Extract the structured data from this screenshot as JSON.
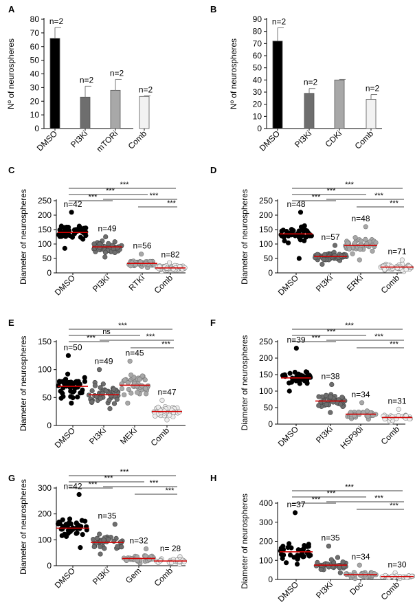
{
  "chart_data": [
    {
      "id": "A",
      "type": "bar",
      "panel_label": "A",
      "ylabel": "Nº of neurospheres",
      "ylim": [
        0,
        80
      ],
      "ytick_step": 10,
      "categories": [
        "DMSO",
        "PI3Ki",
        "mTORi",
        "Comb"
      ],
      "values": [
        66,
        23,
        28,
        23.5
      ],
      "errors": [
        8,
        8,
        8,
        0.5
      ],
      "fills": [
        "#000000",
        "#6e6e6e",
        "#a8a8a8",
        "#f2f2f2"
      ],
      "labels": [
        "n=2",
        "n=2",
        "n=2",
        "n=2"
      ]
    },
    {
      "id": "B",
      "type": "bar",
      "panel_label": "B",
      "ylabel": "Nº of neurospheres",
      "ylim": [
        0,
        90
      ],
      "ytick_step": 10,
      "categories": [
        "DMSO",
        "PI3Ki",
        "CDKi",
        "Comb"
      ],
      "values": [
        72,
        29,
        40,
        24
      ],
      "errors": [
        11,
        4,
        0.5,
        4
      ],
      "fills": [
        "#000000",
        "#6e6e6e",
        "#a8a8a8",
        "#f2f2f2"
      ],
      "labels": [
        "n=2",
        "n=2",
        "",
        "n=2"
      ]
    },
    {
      "id": "C",
      "type": "scatter",
      "panel_label": "C",
      "ylabel": "Diameter of neurospheres",
      "ylim": [
        0,
        250
      ],
      "ytick_step": 50,
      "categories": [
        "DMSO",
        "PI3Ki",
        "RTKi",
        "Comb"
      ],
      "groups": [
        {
          "n": 42,
          "label": "n=42",
          "median": 140,
          "min": 85,
          "max": 210,
          "spread": 22,
          "fill": "#000000",
          "stroke": "#000000"
        },
        {
          "n": 49,
          "label": "n=49",
          "median": 90,
          "min": 55,
          "max": 125,
          "spread": 16,
          "fill": "#6e6e6e",
          "stroke": "#444444"
        },
        {
          "n": 56,
          "label": "n=56",
          "median": 33,
          "min": 18,
          "max": 65,
          "spread": 10,
          "fill": "#a8a8a8",
          "stroke": "#777777"
        },
        {
          "n": 82,
          "label": "n=82",
          "median": 17,
          "min": 5,
          "max": 35,
          "spread": 7,
          "fill": "#eeeeee",
          "stroke": "#888888"
        }
      ],
      "comparisons": [
        [
          "DMSO",
          "Comb",
          "***"
        ],
        [
          "DMSO",
          "RTKi",
          "***"
        ],
        [
          "DMSO",
          "PI3Ki",
          "***"
        ],
        [
          "PI3Ki",
          "Comb",
          "***"
        ],
        [
          "RTKi",
          "Comb",
          "***"
        ]
      ]
    },
    {
      "id": "D",
      "type": "scatter",
      "panel_label": "D",
      "ylabel": "Diameter of neurospheres",
      "ylim": [
        0,
        250
      ],
      "ytick_step": 50,
      "categories": [
        "DMSO",
        "PI3Ki",
        "ERKi",
        "Comb"
      ],
      "groups": [
        {
          "n": 48,
          "label": "n=48",
          "median": 135,
          "min": 50,
          "max": 210,
          "spread": 25,
          "fill": "#000000",
          "stroke": "#000000"
        },
        {
          "n": 57,
          "label": "n=57",
          "median": 57,
          "min": 30,
          "max": 95,
          "spread": 12,
          "fill": "#6e6e6e",
          "stroke": "#444444"
        },
        {
          "n": 48,
          "label": "n=48",
          "median": 95,
          "min": 45,
          "max": 160,
          "spread": 22,
          "fill": "#a8a8a8",
          "stroke": "#777777"
        },
        {
          "n": 71,
          "label": "n=71",
          "median": 20,
          "min": 5,
          "max": 45,
          "spread": 8,
          "fill": "#eeeeee",
          "stroke": "#888888"
        }
      ],
      "comparisons": [
        [
          "DMSO",
          "Comb",
          "***"
        ],
        [
          "DMSO",
          "ERKi",
          "***"
        ],
        [
          "DMSO",
          "PI3Ki",
          "***"
        ],
        [
          "PI3Ki",
          "Comb",
          "***"
        ],
        [
          "ERKi",
          "Comb",
          "***"
        ]
      ]
    },
    {
      "id": "E",
      "type": "scatter",
      "panel_label": "E",
      "ylabel": "Diameter of neurospheres",
      "ylim": [
        0,
        150
      ],
      "ytick_step": 50,
      "categories": [
        "DMSO",
        "PI3Ki",
        "MEKi",
        "Comb"
      ],
      "groups": [
        {
          "n": 50,
          "label": "n=50",
          "median": 70,
          "min": 40,
          "max": 125,
          "spread": 18,
          "fill": "#000000",
          "stroke": "#000000"
        },
        {
          "n": 49,
          "label": "n=49",
          "median": 55,
          "min": 30,
          "max": 100,
          "spread": 15,
          "fill": "#6e6e6e",
          "stroke": "#444444"
        },
        {
          "n": 45,
          "label": "n=45",
          "median": 72,
          "min": 40,
          "max": 115,
          "spread": 16,
          "fill": "#a8a8a8",
          "stroke": "#777777"
        },
        {
          "n": 47,
          "label": "n=47",
          "median": 25,
          "min": 10,
          "max": 45,
          "spread": 8,
          "fill": "#eeeeee",
          "stroke": "#888888"
        }
      ],
      "comparisons": [
        [
          "DMSO",
          "Comb",
          "***"
        ],
        [
          "DMSO",
          "MEKi",
          "ns"
        ],
        [
          "DMSO",
          "PI3Ki",
          "***"
        ],
        [
          "PI3Ki",
          "Comb",
          "***"
        ],
        [
          "MEKi",
          "Comb",
          "***"
        ]
      ]
    },
    {
      "id": "F",
      "type": "scatter",
      "panel_label": "F",
      "ylabel": "Diameter of neurospheres",
      "ylim": [
        0,
        250
      ],
      "ytick_step": 50,
      "categories": [
        "DMSO",
        "PI3Ki",
        "HSP90i",
        "Comb"
      ],
      "groups": [
        {
          "n": 39,
          "label": "n=39",
          "median": 140,
          "min": 100,
          "max": 230,
          "spread": 18,
          "fill": "#000000",
          "stroke": "#000000"
        },
        {
          "n": 38,
          "label": "n=38",
          "median": 70,
          "min": 35,
          "max": 120,
          "spread": 18,
          "fill": "#6e6e6e",
          "stroke": "#444444"
        },
        {
          "n": 34,
          "label": "n=34",
          "median": 30,
          "min": 15,
          "max": 65,
          "spread": 10,
          "fill": "#a8a8a8",
          "stroke": "#777777"
        },
        {
          "n": 31,
          "label": "n=31",
          "median": 20,
          "min": 5,
          "max": 45,
          "spread": 8,
          "fill": "#eeeeee",
          "stroke": "#888888"
        }
      ],
      "comparisons": [
        [
          "DMSO",
          "Comb",
          "***"
        ],
        [
          "DMSO",
          "HSP90i",
          "***"
        ],
        [
          "DMSO",
          "PI3Ki",
          "***"
        ],
        [
          "PI3Ki",
          "Comb",
          "***"
        ],
        [
          "HSP90i",
          "Comb",
          "***"
        ]
      ]
    },
    {
      "id": "G",
      "type": "scatter",
      "panel_label": "G",
      "ylabel": "Diameter of neurospheres",
      "ylim": [
        0,
        300
      ],
      "ytick_step": 100,
      "categories": [
        "DMSO",
        "PI3Ki",
        "Gem",
        "Comb"
      ],
      "groups": [
        {
          "n": 42,
          "label": "n=42",
          "median": 145,
          "min": 70,
          "max": 275,
          "spread": 40,
          "fill": "#000000",
          "stroke": "#000000"
        },
        {
          "n": 35,
          "label": "n=35",
          "median": 90,
          "min": 45,
          "max": 160,
          "spread": 25,
          "fill": "#6e6e6e",
          "stroke": "#444444"
        },
        {
          "n": 32,
          "label": "n=32",
          "median": 28,
          "min": 10,
          "max": 65,
          "spread": 12,
          "fill": "#a8a8a8",
          "stroke": "#777777"
        },
        {
          "n": 28,
          "label": "n= 28",
          "median": 18,
          "min": 5,
          "max": 35,
          "spread": 7,
          "fill": "#eeeeee",
          "stroke": "#888888"
        }
      ],
      "comparisons": [
        [
          "DMSO",
          "Comb",
          "***"
        ],
        [
          "DMSO",
          "Gem",
          "***"
        ],
        [
          "DMSO",
          "PI3Ki",
          "***"
        ],
        [
          "PI3Ki",
          "Comb",
          "***"
        ],
        [
          "Gem",
          "Comb",
          "***"
        ]
      ]
    },
    {
      "id": "H",
      "type": "scatter",
      "panel_label": "H",
      "ylabel": "Diameter of neurospheres",
      "ylim": [
        0,
        400
      ],
      "ytick_step": 100,
      "categories": [
        "DMSO",
        "PI3Ki",
        "Doc",
        "Comb"
      ],
      "groups": [
        {
          "n": 37,
          "label": "n=37",
          "median": 145,
          "min": 80,
          "max": 350,
          "spread": 45,
          "fill": "#000000",
          "stroke": "#000000"
        },
        {
          "n": 35,
          "label": "n=35",
          "median": 75,
          "min": 35,
          "max": 175,
          "spread": 28,
          "fill": "#6e6e6e",
          "stroke": "#444444"
        },
        {
          "n": 34,
          "label": "n=34",
          "median": 25,
          "min": 5,
          "max": 75,
          "spread": 12,
          "fill": "#a8a8a8",
          "stroke": "#777777"
        },
        {
          "n": 30,
          "label": "n=30",
          "median": 15,
          "min": 5,
          "max": 35,
          "spread": 7,
          "fill": "#eeeeee",
          "stroke": "#888888"
        }
      ],
      "comparisons": [
        [
          "DMSO",
          "Comb",
          "***"
        ],
        [
          "DMSO",
          "Doc",
          "***"
        ],
        [
          "DMSO",
          "PI3Ki",
          "***"
        ],
        [
          "PI3Ki",
          "Comb",
          "***"
        ],
        [
          "Doc",
          "Comb",
          "***"
        ]
      ]
    }
  ],
  "colors": {
    "median_line": "#d40000",
    "axis": "#000000"
  }
}
